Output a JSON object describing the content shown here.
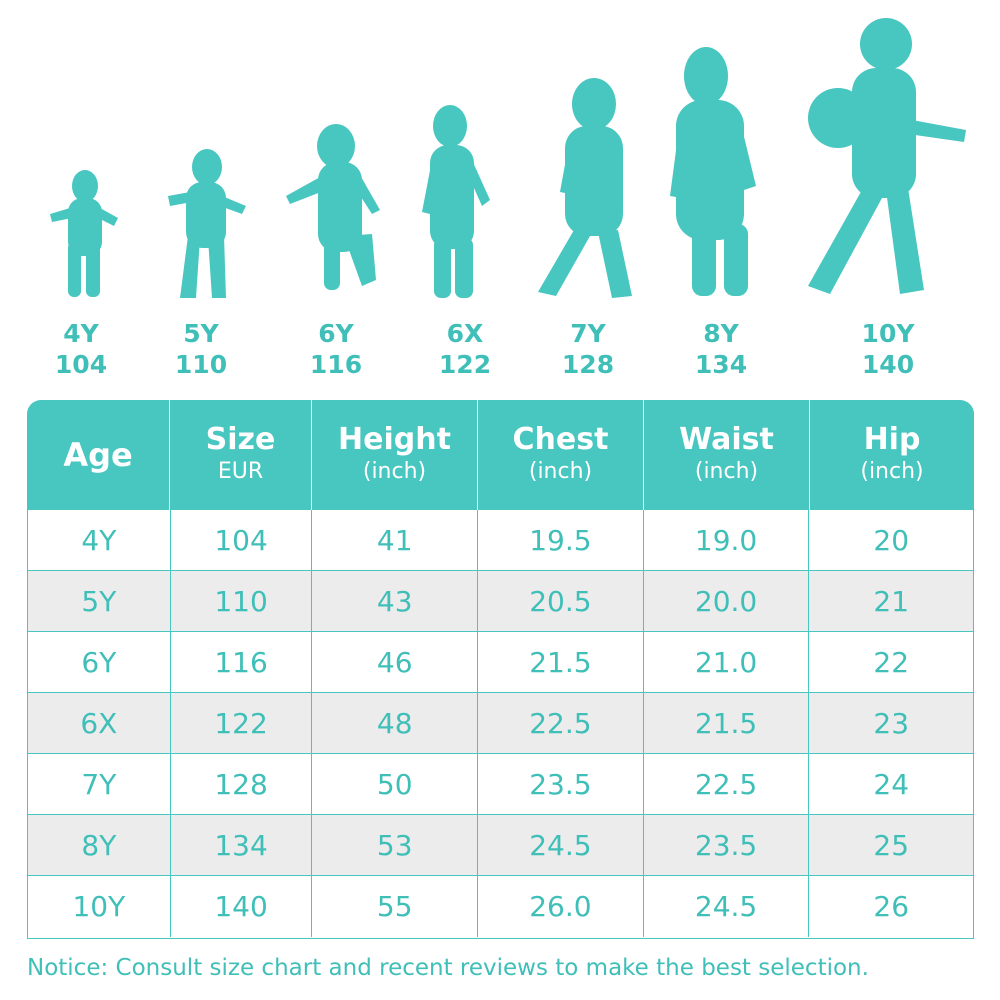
{
  "colors": {
    "accent": "#48c6c0",
    "text": "#3fbfb8",
    "shaded_row": "#ececec"
  },
  "silhouettes": [
    {
      "icon": "toddler-standing-icon"
    },
    {
      "icon": "toddler-walking-icon"
    },
    {
      "icon": "child-stepping-icon"
    },
    {
      "icon": "child-standing-icon"
    },
    {
      "icon": "child-walking-icon"
    },
    {
      "icon": "child-standing-icon"
    },
    {
      "icon": "boy-with-ball-walking-icon"
    }
  ],
  "size_labels": [
    {
      "age": "4Y",
      "size": "104"
    },
    {
      "age": "5Y",
      "size": "110"
    },
    {
      "age": "6Y",
      "size": "116"
    },
    {
      "age": "6X",
      "size": "122"
    },
    {
      "age": "7Y",
      "size": "128"
    },
    {
      "age": "8Y",
      "size": "134"
    },
    {
      "age": "10Y",
      "size": "140"
    }
  ],
  "table": {
    "headers": [
      {
        "main": "Age",
        "sub": ""
      },
      {
        "main": "Size",
        "sub": "EUR"
      },
      {
        "main": "Height",
        "sub": "(inch)"
      },
      {
        "main": "Chest",
        "sub": "(inch)"
      },
      {
        "main": "Waist",
        "sub": "(inch)"
      },
      {
        "main": "Hip",
        "sub": "(inch)"
      }
    ],
    "rows": [
      [
        "4Y",
        "104",
        "41",
        "19.5",
        "19.0",
        "20"
      ],
      [
        "5Y",
        "110",
        "43",
        "20.5",
        "20.0",
        "21"
      ],
      [
        "6Y",
        "116",
        "46",
        "21.5",
        "21.0",
        "22"
      ],
      [
        "6X",
        "122",
        "48",
        "22.5",
        "21.5",
        "23"
      ],
      [
        "7Y",
        "128",
        "50",
        "23.5",
        "22.5",
        "24"
      ],
      [
        "8Y",
        "134",
        "53",
        "24.5",
        "23.5",
        "25"
      ],
      [
        "10Y",
        "140",
        "55",
        "26.0",
        "24.5",
        "26"
      ]
    ]
  },
  "notice": "Notice: Consult size chart and recent reviews to make the best selection."
}
